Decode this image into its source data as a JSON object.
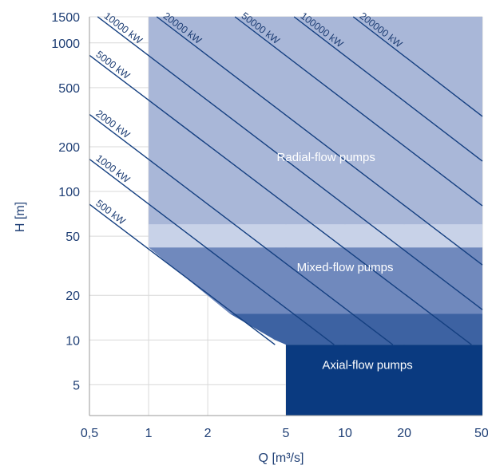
{
  "chart_data": {
    "type": "area",
    "xlabel": "Q [m³/s]",
    "ylabel": "H [m]",
    "xscale": "log",
    "yscale": "log",
    "xlim": [
      0.5,
      50
    ],
    "ylim": [
      3.1,
      1500
    ],
    "grid": true,
    "x_ticks": [
      {
        "value": 0.5,
        "label": "0,5"
      },
      {
        "value": 1,
        "label": "1"
      },
      {
        "value": 2,
        "label": "2"
      },
      {
        "value": 5,
        "label": "5"
      },
      {
        "value": 10,
        "label": "10"
      },
      {
        "value": 20,
        "label": "20"
      },
      {
        "value": 50,
        "label": "50"
      }
    ],
    "y_ticks": [
      {
        "value": 5,
        "label": "5"
      },
      {
        "value": 10,
        "label": "10"
      },
      {
        "value": 20,
        "label": "20"
      },
      {
        "value": 50,
        "label": "50"
      },
      {
        "value": 100,
        "label": "100"
      },
      {
        "value": 200,
        "label": "200"
      },
      {
        "value": 500,
        "label": "500"
      },
      {
        "value": 1000,
        "label": "1000"
      },
      {
        "value": 1500,
        "label": "1500"
      }
    ],
    "regions": [
      {
        "name": "Radial-flow pumps",
        "color": "#a9b7d8",
        "label_at": [
          8,
          170
        ],
        "polygon": [
          [
            1,
            1500
          ],
          [
            50,
            1500
          ],
          [
            50,
            60
          ],
          [
            1,
            60
          ]
        ]
      },
      {
        "name": "",
        "color": "#c8d2e8",
        "polygon": [
          [
            1,
            60
          ],
          [
            50,
            60
          ],
          [
            50,
            42
          ],
          [
            1,
            42
          ]
        ]
      },
      {
        "name": "Mixed-flow pumps",
        "color": "#7089bd",
        "label_at": [
          10,
          31
        ],
        "polygon": [
          [
            1,
            42
          ],
          [
            50,
            42
          ],
          [
            50,
            15
          ],
          [
            2.6,
            15
          ]
        ]
      },
      {
        "name": "",
        "color": "#3d62a2",
        "polygon": [
          [
            2.6,
            15
          ],
          [
            50,
            15
          ],
          [
            50,
            9.3
          ],
          [
            5,
            9.3
          ],
          [
            4.4,
            10
          ]
        ]
      },
      {
        "name": "Axial-flow pumps",
        "color": "#0a3a80",
        "label_at": [
          13,
          6.8
        ],
        "polygon": [
          [
            5,
            9.3
          ],
          [
            50,
            9.3
          ],
          [
            50,
            3.1
          ],
          [
            5,
            3.1
          ]
        ]
      }
    ],
    "power_lines": [
      {
        "label": "500 kW",
        "power_kw": 500,
        "from": [
          0.5,
          82
        ],
        "to": [
          4.4,
          9.3
        ]
      },
      {
        "label": "1000 kW",
        "power_kw": 1000,
        "from": [
          0.5,
          165
        ],
        "to": [
          8.8,
          9.3
        ]
      },
      {
        "label": "2000 kW",
        "power_kw": 2000,
        "from": [
          0.5,
          330
        ],
        "to": [
          17.5,
          9.3
        ]
      },
      {
        "label": "5000 kW",
        "power_kw": 5000,
        "from": [
          0.5,
          825
        ],
        "to": [
          44,
          9.3
        ]
      },
      {
        "label": "10000 kW",
        "power_kw": 10000,
        "from": [
          0.55,
          1500
        ],
        "to": [
          50,
          16
        ]
      },
      {
        "label": "20000 kW",
        "power_kw": 20000,
        "from": [
          1.1,
          1500
        ],
        "to": [
          50,
          32
        ]
      },
      {
        "label": "50000 kW",
        "power_kw": 50000,
        "from": [
          2.75,
          1500
        ],
        "to": [
          50,
          80
        ]
      },
      {
        "label": "100000 kW",
        "power_kw": 100000,
        "from": [
          5.5,
          1500
        ],
        "to": [
          50,
          160
        ]
      },
      {
        "label": "200000 kW",
        "power_kw": 200000,
        "from": [
          11,
          1500
        ],
        "to": [
          50,
          320
        ]
      }
    ],
    "colors": {
      "line": "#143f80",
      "grid": "#d9d9d9",
      "text": "#1f3f75"
    }
  }
}
